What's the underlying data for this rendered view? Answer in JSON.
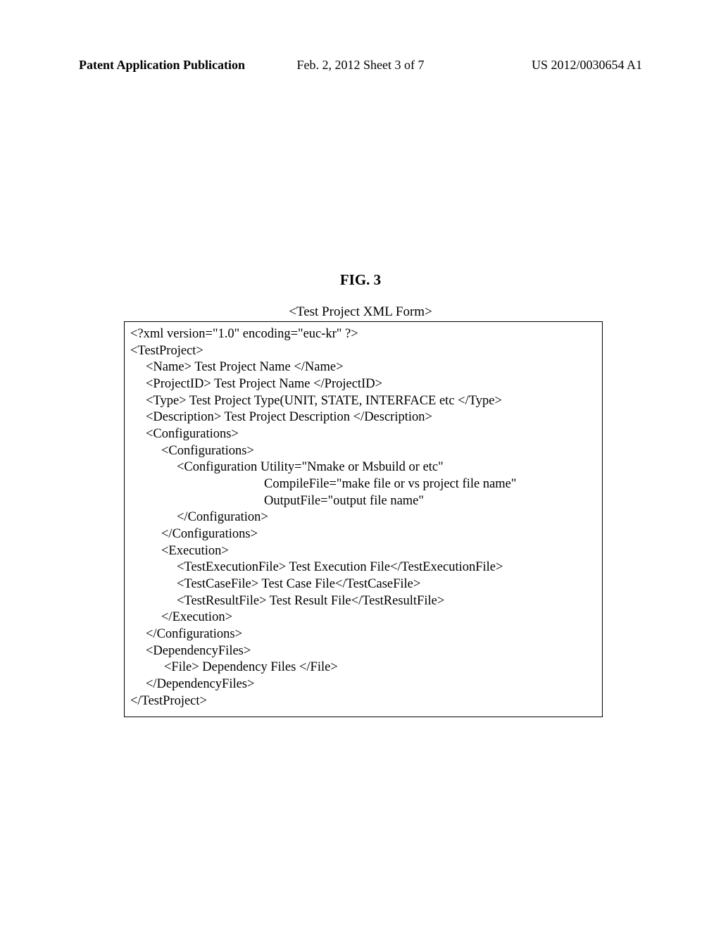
{
  "header": {
    "left": "Patent Application Publication",
    "center": "Feb. 2, 2012  Sheet 3 of 7",
    "right": "US 2012/0030654 A1"
  },
  "figTitle": "FIG. 3",
  "formTitle": "<Test Project XML Form>",
  "code": {
    "l1": "<?xml version=\"1.0\" encoding=\"euc-kr\" ?>",
    "l2": "<TestProject>",
    "l3": "<Name> Test Project Name </Name>",
    "l4": "<ProjectID> Test Project Name </ProjectID>",
    "l5": "<Type> Test Project Type(UNIT, STATE, INTERFACE etc </Type>",
    "l6": "<Description> Test Project Description </Description>",
    "l7": "<Configurations>",
    "l8": "<Configurations>",
    "l9": "<Configuration Utility=\"Nmake or Msbuild or etc\"",
    "l10": "CompileFile=\"make file or vs project file name\"",
    "l11": "OutputFile=\"output file name\"",
    "l12": "</Configuration>",
    "l13": "</Configurations>",
    "l14": "<Execution>",
    "l15": "<TestExecutionFile> Test Execution File</TestExecutionFile>",
    "l16": "<TestCaseFile> Test Case File</TestCaseFile>",
    "l17": "<TestResultFile> Test Result File</TestResultFile>",
    "l18": "</Execution>",
    "l19": "</Configurations>",
    "l20": "<DependencyFiles>",
    "l21": "<File> Dependency Files </File>",
    "l22": "</DependencyFiles>",
    "l23": "</TestProject>"
  }
}
